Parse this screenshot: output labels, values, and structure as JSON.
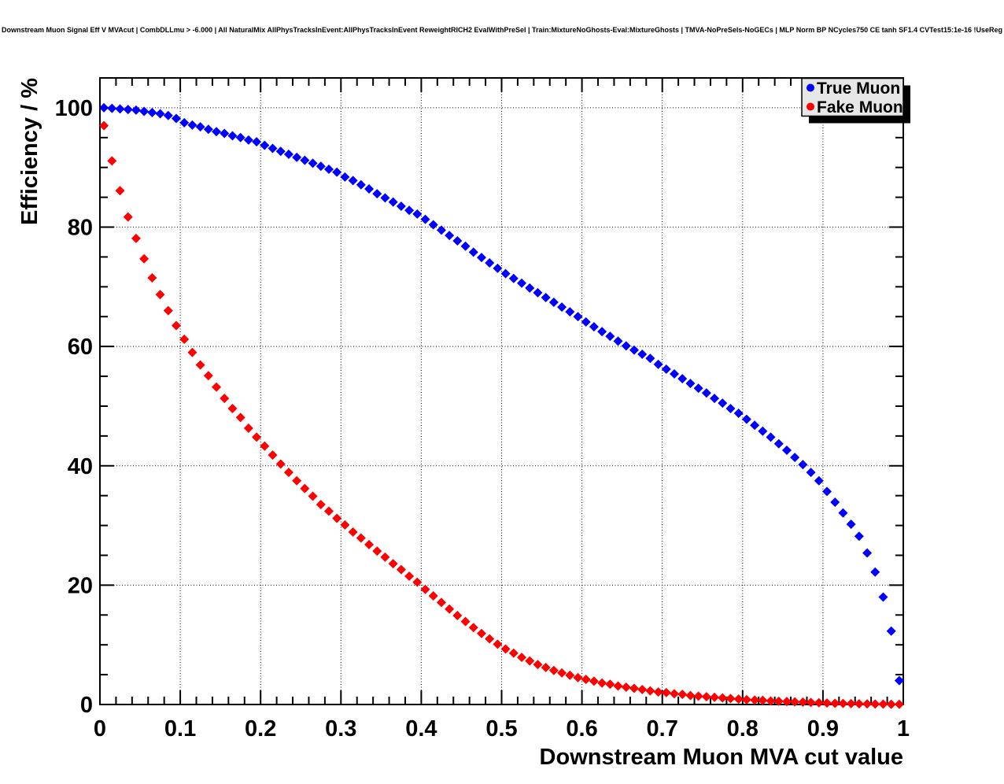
{
  "page_title": "Downstream Muon Signal Eff V MVAcut | CombDLLmu > -6.000 | All NaturalMix AllPhysTracksInEvent:AllPhysTracksInEvent ReweightRICH2 EvalWithPreSel | Train:MixtureNoGhosts-Eval:MixtureGhosts | TMVA-NoPreSels-NoGECs | MLP Norm BP NCycles750 CE tanh SF1.4 CVTest15:1e-16 !UseReg",
  "axes": {
    "x_title": "Downstream Muon MVA cut value",
    "y_title": "Efficiency / %"
  },
  "legend": {
    "position": "top-right",
    "background": "#e6e6e6",
    "border": "#000000",
    "shadow": "#000000"
  },
  "colors": {
    "true_muon": "#0000ff",
    "fake_muon": "#ff0000",
    "frame": "#000000",
    "grid": "#000000"
  },
  "chart_data": {
    "type": "scatter",
    "title": "Downstream Muon Signal Eff V MVAcut | CombDLLmu > -6.000 | All NaturalMix AllPhysTracksInEvent:AllPhysTracksInEvent ReweightRICH2 EvalWithPreSel | Train:MixtureNoGhosts-Eval:MixtureGhosts | TMVA-NoPreSels-NoGECs | MLP Norm BP NCycles750 CE tanh SF1.4 CVTest15:1e-16 !UseReg",
    "xlabel": "Downstream Muon MVA cut value",
    "ylabel": "Efficiency / %",
    "xlim": [
      0,
      1
    ],
    "ylim": [
      0,
      105
    ],
    "xticks": [
      0,
      0.1,
      0.2,
      0.3,
      0.4,
      0.5,
      0.6,
      0.7,
      0.8,
      0.9,
      1
    ],
    "xtick_labels": [
      "0",
      "0.1",
      "0.2",
      "0.3",
      "0.4",
      "0.5",
      "0.6",
      "0.7",
      "0.8",
      "0.9",
      "1"
    ],
    "yticks": [
      0,
      20,
      40,
      60,
      80,
      100
    ],
    "ytick_labels": [
      "0",
      "20",
      "40",
      "60",
      "80",
      "100"
    ],
    "x_minor_step": 0.02,
    "y_minor_step": 5,
    "grid": true,
    "legend_position": "top-right",
    "x_error": 0.005,
    "x": [
      0.005,
      0.015,
      0.025,
      0.035,
      0.045,
      0.055,
      0.065,
      0.075,
      0.085,
      0.095,
      0.105,
      0.115,
      0.125,
      0.135,
      0.145,
      0.155,
      0.165,
      0.175,
      0.185,
      0.195,
      0.205,
      0.215,
      0.225,
      0.235,
      0.245,
      0.255,
      0.265,
      0.275,
      0.285,
      0.295,
      0.305,
      0.315,
      0.325,
      0.335,
      0.345,
      0.355,
      0.365,
      0.375,
      0.385,
      0.395,
      0.405,
      0.415,
      0.425,
      0.435,
      0.445,
      0.455,
      0.465,
      0.475,
      0.485,
      0.495,
      0.505,
      0.515,
      0.525,
      0.535,
      0.545,
      0.555,
      0.565,
      0.575,
      0.585,
      0.595,
      0.605,
      0.615,
      0.625,
      0.635,
      0.645,
      0.655,
      0.665,
      0.675,
      0.685,
      0.695,
      0.705,
      0.715,
      0.725,
      0.735,
      0.745,
      0.755,
      0.765,
      0.775,
      0.785,
      0.795,
      0.805,
      0.815,
      0.825,
      0.835,
      0.845,
      0.855,
      0.865,
      0.875,
      0.885,
      0.895,
      0.905,
      0.915,
      0.925,
      0.935,
      0.945,
      0.955,
      0.965,
      0.975,
      0.985,
      0.995
    ],
    "series": [
      {
        "name": "True Muon",
        "color": "#0000ff",
        "values": [
          100.0,
          99.9,
          99.8,
          99.7,
          99.6,
          99.4,
          99.2,
          99.0,
          98.7,
          98.2,
          97.5,
          97.1,
          96.8,
          96.4,
          96.0,
          95.7,
          95.3,
          95.0,
          94.6,
          94.3,
          93.7,
          93.2,
          92.7,
          92.2,
          91.7,
          91.2,
          90.7,
          90.2,
          89.7,
          89.2,
          88.4,
          87.8,
          87.1,
          86.4,
          85.6,
          84.9,
          84.2,
          83.5,
          82.8,
          82.2,
          81.3,
          80.4,
          79.5,
          78.6,
          77.7,
          76.8,
          75.8,
          74.9,
          74.0,
          73.1,
          72.2,
          71.4,
          70.6,
          69.8,
          69.0,
          68.2,
          67.4,
          66.6,
          65.8,
          65.0,
          64.1,
          63.3,
          62.5,
          61.7,
          60.9,
          60.1,
          59.4,
          58.7,
          58.0,
          57.0,
          56.2,
          55.4,
          54.6,
          53.8,
          53.0,
          52.2,
          51.3,
          50.5,
          49.6,
          48.8,
          47.8,
          46.8,
          45.8,
          44.8,
          43.7,
          42.6,
          41.4,
          40.2,
          38.9,
          37.5,
          35.7,
          33.9,
          32.1,
          30.2,
          28.2,
          25.4,
          22.2,
          18.0,
          12.3,
          4.0
        ]
      },
      {
        "name": "Fake Muon",
        "color": "#ff0000",
        "values": [
          97.0,
          91.1,
          86.1,
          81.7,
          78.1,
          74.7,
          71.5,
          68.7,
          66.0,
          63.5,
          61.2,
          59.0,
          56.9,
          55.1,
          53.2,
          51.3,
          49.6,
          48.1,
          46.3,
          44.8,
          43.3,
          41.8,
          40.3,
          38.9,
          37.5,
          36.2,
          34.9,
          33.5,
          32.4,
          31.2,
          30.1,
          28.9,
          27.9,
          26.8,
          25.7,
          24.7,
          23.6,
          22.6,
          21.5,
          20.5,
          19.3,
          18.2,
          17.1,
          16.0,
          14.9,
          13.9,
          12.9,
          11.9,
          11.0,
          10.1,
          9.3,
          8.6,
          7.9,
          7.3,
          6.7,
          6.2,
          5.7,
          5.3,
          4.9,
          4.5,
          4.2,
          3.9,
          3.6,
          3.4,
          3.1,
          2.9,
          2.7,
          2.5,
          2.3,
          2.1,
          2.0,
          1.8,
          1.7,
          1.5,
          1.4,
          1.3,
          1.2,
          1.1,
          1.0,
          0.9,
          0.8,
          0.75,
          0.7,
          0.6,
          0.55,
          0.5,
          0.45,
          0.4,
          0.35,
          0.3,
          0.25,
          0.2,
          0.18,
          0.15,
          0.12,
          0.1,
          0.08,
          0.06,
          0.04,
          0.03
        ]
      }
    ]
  }
}
